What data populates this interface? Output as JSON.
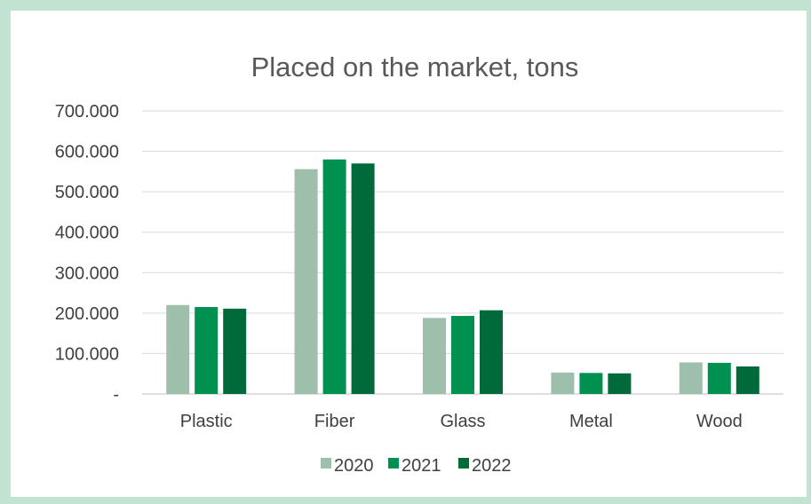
{
  "chart_data": {
    "type": "bar",
    "title": "Placed on the market, tons",
    "categories": [
      "Plastic",
      "Fiber",
      "Glass",
      "Metal",
      "Wood"
    ],
    "series": [
      {
        "name": "2020",
        "color": "#9fbfad",
        "values": [
          220000,
          556000,
          188000,
          53000,
          78000
        ]
      },
      {
        "name": "2021",
        "color": "#00904f",
        "values": [
          215000,
          580000,
          193000,
          52000,
          77000
        ]
      },
      {
        "name": "2022",
        "color": "#006a3a",
        "values": [
          211000,
          570000,
          207000,
          51000,
          68000
        ]
      }
    ],
    "ylim": [
      0,
      700000
    ],
    "yticks": [
      0,
      100000,
      200000,
      300000,
      400000,
      500000,
      600000,
      700000
    ],
    "ytick_labels": [
      "-",
      "100.000",
      "200.000",
      "300.000",
      "400.000",
      "500.000",
      "600.000",
      "700.000"
    ],
    "grid": true,
    "legend": "bottom",
    "border_color": "#c3e3d2",
    "grid_color": "#d9d9d9"
  }
}
